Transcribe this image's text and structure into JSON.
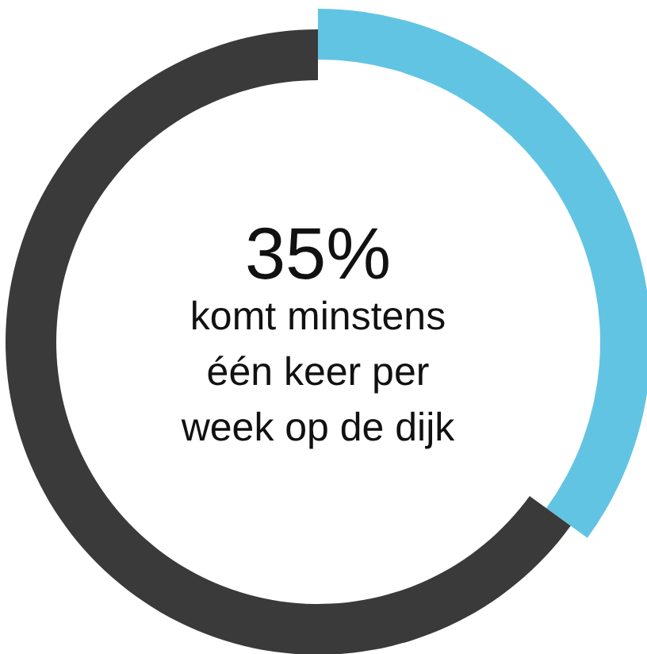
{
  "chart_data": {
    "type": "donut",
    "categories": [
      null,
      null
    ],
    "values": [
      35,
      65
    ],
    "colors": [
      "#62c4e3",
      "#3a3a3a"
    ],
    "value_labels": [
      "35%",
      null
    ],
    "annotations": [
      "komt minstens\néén keer per\nweek op de dijk"
    ]
  }
}
